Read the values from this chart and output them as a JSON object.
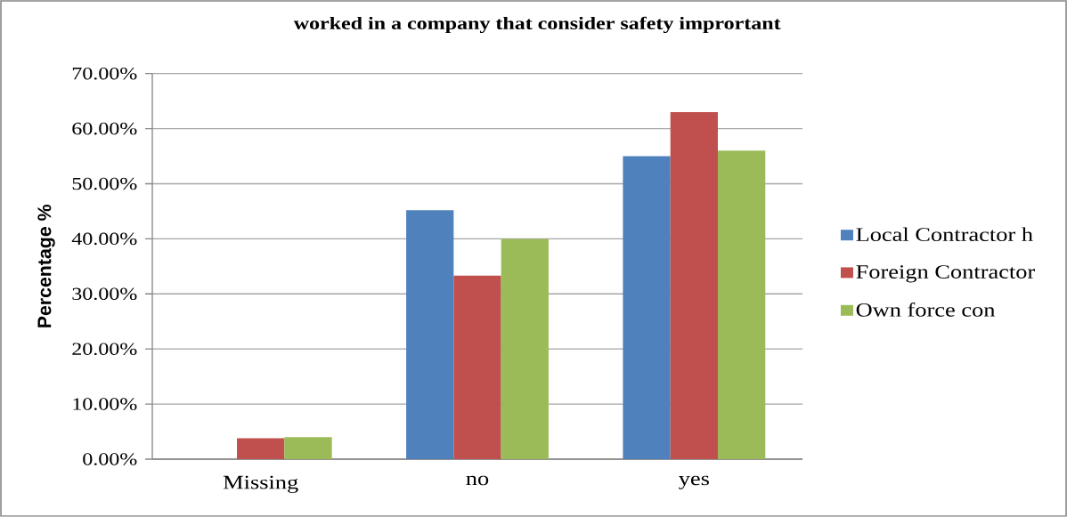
{
  "chart_data": {
    "type": "bar",
    "title": "worked in a company that consider safety imprortant",
    "ylabel": "Percentage %",
    "categories": [
      "Missing",
      "no",
      "yes"
    ],
    "series": [
      {
        "name": "Local Contractor h",
        "color": "#4f81bd",
        "values": [
          0,
          45.2,
          55
        ]
      },
      {
        "name": "Foreign Contractor",
        "color": "#c0504d",
        "values": [
          3.8,
          33.3,
          63
        ]
      },
      {
        "name": "Own force con",
        "color": "#9bbb59",
        "values": [
          4,
          40,
          56
        ]
      }
    ],
    "ylim": [
      0,
      70
    ],
    "yticks": [
      {
        "value": 0,
        "label": "0.00%"
      },
      {
        "value": 10,
        "label": "10.00%"
      },
      {
        "value": 20,
        "label": "20.00%"
      },
      {
        "value": 30,
        "label": "30.00%"
      },
      {
        "value": 40,
        "label": "40.00%"
      },
      {
        "value": 50,
        "label": "50.00%"
      },
      {
        "value": 60,
        "label": "60.00%"
      },
      {
        "value": 70,
        "label": "70.00%"
      }
    ],
    "grid": "y",
    "legend": "right"
  }
}
